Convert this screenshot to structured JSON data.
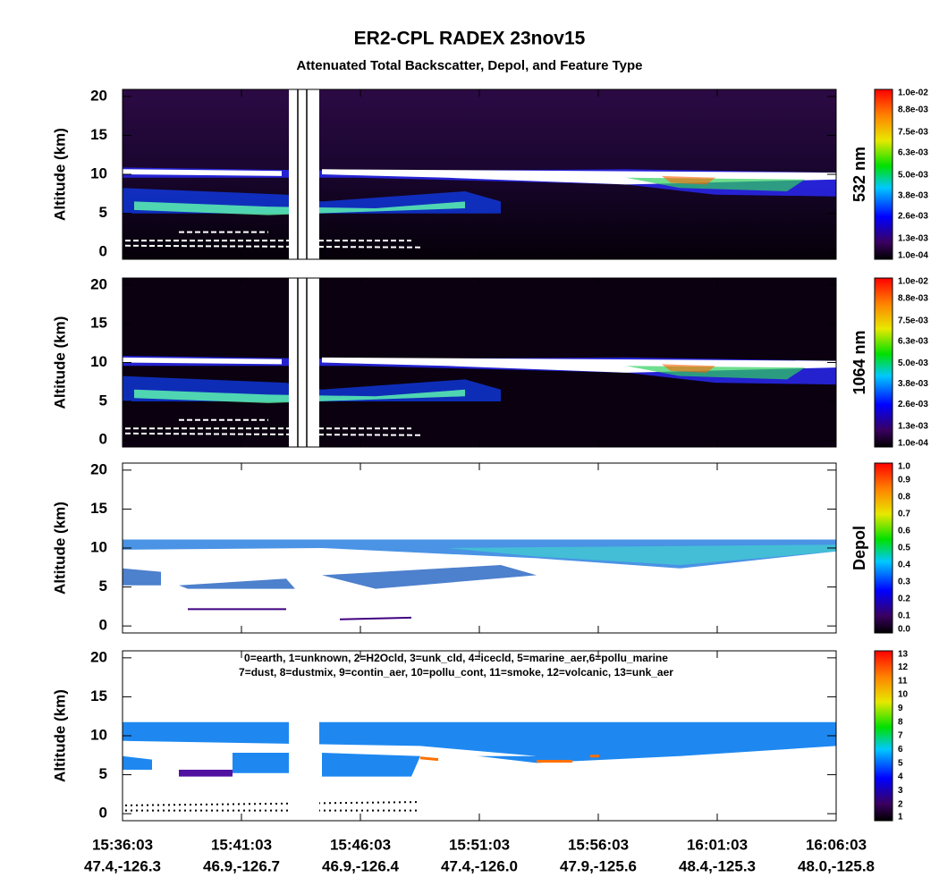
{
  "title": "ER2-CPL RADEX 23nov15",
  "subtitle": "Attenuated Total Backscatter, Depol, and Feature Type",
  "chart_data": [
    {
      "type": "heatmap",
      "ylabel": "Altitude (km)",
      "ylim": [
        -0.9,
        20.9
      ],
      "yticks": [
        0,
        5,
        10,
        15,
        20
      ],
      "colorbar": {
        "label": "532 nm",
        "clim": [
          0.0001,
          0.01
        ],
        "ticks": [
          {
            "value": 0.01,
            "label": "1.0e-02"
          },
          {
            "value": 0.0088,
            "label": "8.8e-03"
          },
          {
            "value": 0.0075,
            "label": "7.5e-03"
          },
          {
            "value": 0.0063,
            "label": "6.3e-03"
          },
          {
            "value": 0.005,
            "label": "5.0e-03"
          },
          {
            "value": 0.0038,
            "label": "3.8e-03"
          },
          {
            "value": 0.0026,
            "label": "2.6e-03"
          },
          {
            "value": 0.0013,
            "label": "1.3e-03"
          },
          {
            "value": 0.0001,
            "label": "1.0e-04"
          }
        ]
      }
    },
    {
      "type": "heatmap",
      "ylabel": "Altitude (km)",
      "ylim": [
        -0.9,
        20.9
      ],
      "yticks": [
        0,
        5,
        10,
        15,
        20
      ],
      "colorbar": {
        "label": "1064 nm",
        "clim": [
          0.0001,
          0.01
        ],
        "ticks": [
          {
            "value": 0.01,
            "label": "1.0e-02"
          },
          {
            "value": 0.0088,
            "label": "8.8e-03"
          },
          {
            "value": 0.0075,
            "label": "7.5e-03"
          },
          {
            "value": 0.0063,
            "label": "6.3e-03"
          },
          {
            "value": 0.005,
            "label": "5.0e-03"
          },
          {
            "value": 0.0038,
            "label": "3.8e-03"
          },
          {
            "value": 0.0026,
            "label": "2.6e-03"
          },
          {
            "value": 0.0013,
            "label": "1.3e-03"
          },
          {
            "value": 0.0001,
            "label": "1.0e-04"
          }
        ]
      }
    },
    {
      "type": "heatmap",
      "ylabel": "Altitude (km)",
      "ylim": [
        -0.9,
        20.9
      ],
      "yticks": [
        0,
        5,
        10,
        15,
        20
      ],
      "colorbar": {
        "label": "Depol",
        "clim": [
          0,
          1
        ],
        "ticks": [
          {
            "value": 1,
            "label": "1.0"
          },
          0.9,
          0.8,
          0.7,
          0.6,
          0.5,
          0.4,
          0.3,
          0.2,
          0.1,
          {
            "value": 0,
            "label": "0.0"
          }
        ]
      }
    },
    {
      "type": "heatmap",
      "ylabel": "Altitude (km)",
      "ylim": [
        -0.9,
        20.9
      ],
      "yticks": [
        0,
        5,
        10,
        15,
        20
      ],
      "legend_text": [
        "0=earth, 1=unknown, 2=H2Ocld, 3=unk_cld, 4=icecld, 5=marine_aer,6=pollu_marine",
        "7=dust, 8=dustmix, 9=contin_aer, 10=pollu_cont, 11=smoke, 12=volcanic, 13=unk_aer"
      ],
      "colorbar": {
        "clim": [
          0.8,
          13.2
        ],
        "ticks": [
          13,
          12,
          11,
          10,
          9,
          8,
          7,
          6,
          5,
          4,
          3,
          2,
          1
        ]
      },
      "xticks": [
        {
          "time": "15:36:03",
          "position": "47.4,-126.3"
        },
        {
          "time": "15:41:03",
          "position": "46.9,-126.7"
        },
        {
          "time": "15:46:03",
          "position": "46.9,-126.4"
        },
        {
          "time": "15:51:03",
          "position": "47.4,-126.0"
        },
        {
          "time": "15:56:03",
          "position": "47.9,-125.6"
        },
        {
          "time": "16:01:03",
          "position": "48.4,-125.3"
        },
        {
          "time": "16:06:03",
          "position": "48.0,-125.8"
        }
      ]
    }
  ]
}
